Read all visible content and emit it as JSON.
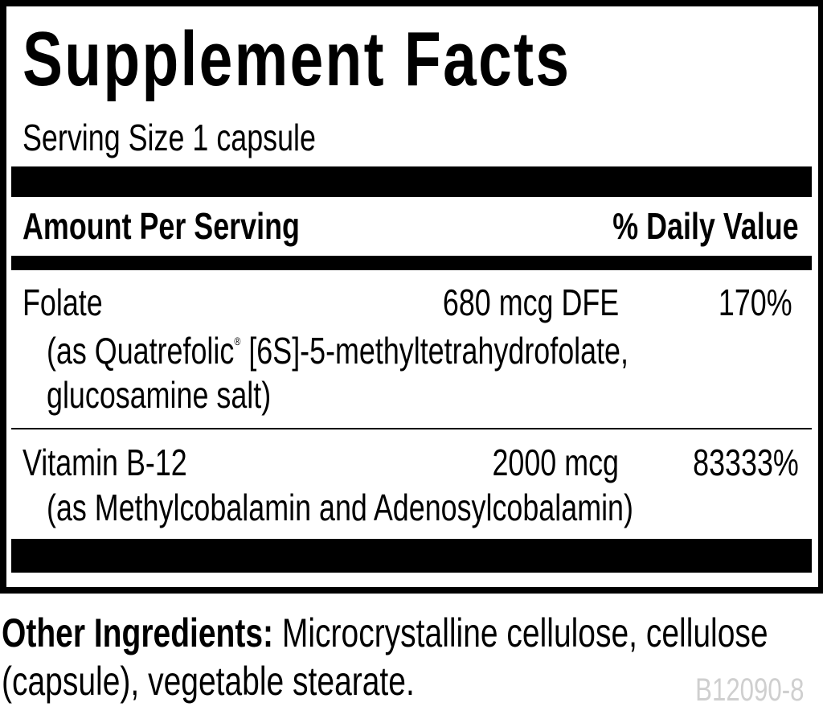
{
  "label": {
    "title": "Supplement Facts",
    "serving_size": "Serving Size 1 capsule",
    "header": {
      "amount": "Amount Per Serving",
      "daily_value": "% Daily Value"
    },
    "nutrients": [
      {
        "name": "Folate",
        "amount": "680 mcg DFE",
        "dv": "170%",
        "source_line1_prefix": "(as Quatrefolic",
        "source_line1_mark": "®",
        "source_line1_suffix": " [6S]-5-methyltetrahydrofolate,",
        "source_line2": "glucosamine salt)"
      },
      {
        "name": "Vitamin B-12",
        "amount": "2000 mcg",
        "dv": "83333%",
        "source_line1": "(as Methylcobalamin and Adenosylcobalamin)"
      }
    ]
  },
  "other_ingredients": {
    "label": "Other Ingredients:",
    "line1": " Microcrystalline cellulose, cellulose",
    "line2": "(capsule), vegetable stearate."
  },
  "code": "B12090-8"
}
